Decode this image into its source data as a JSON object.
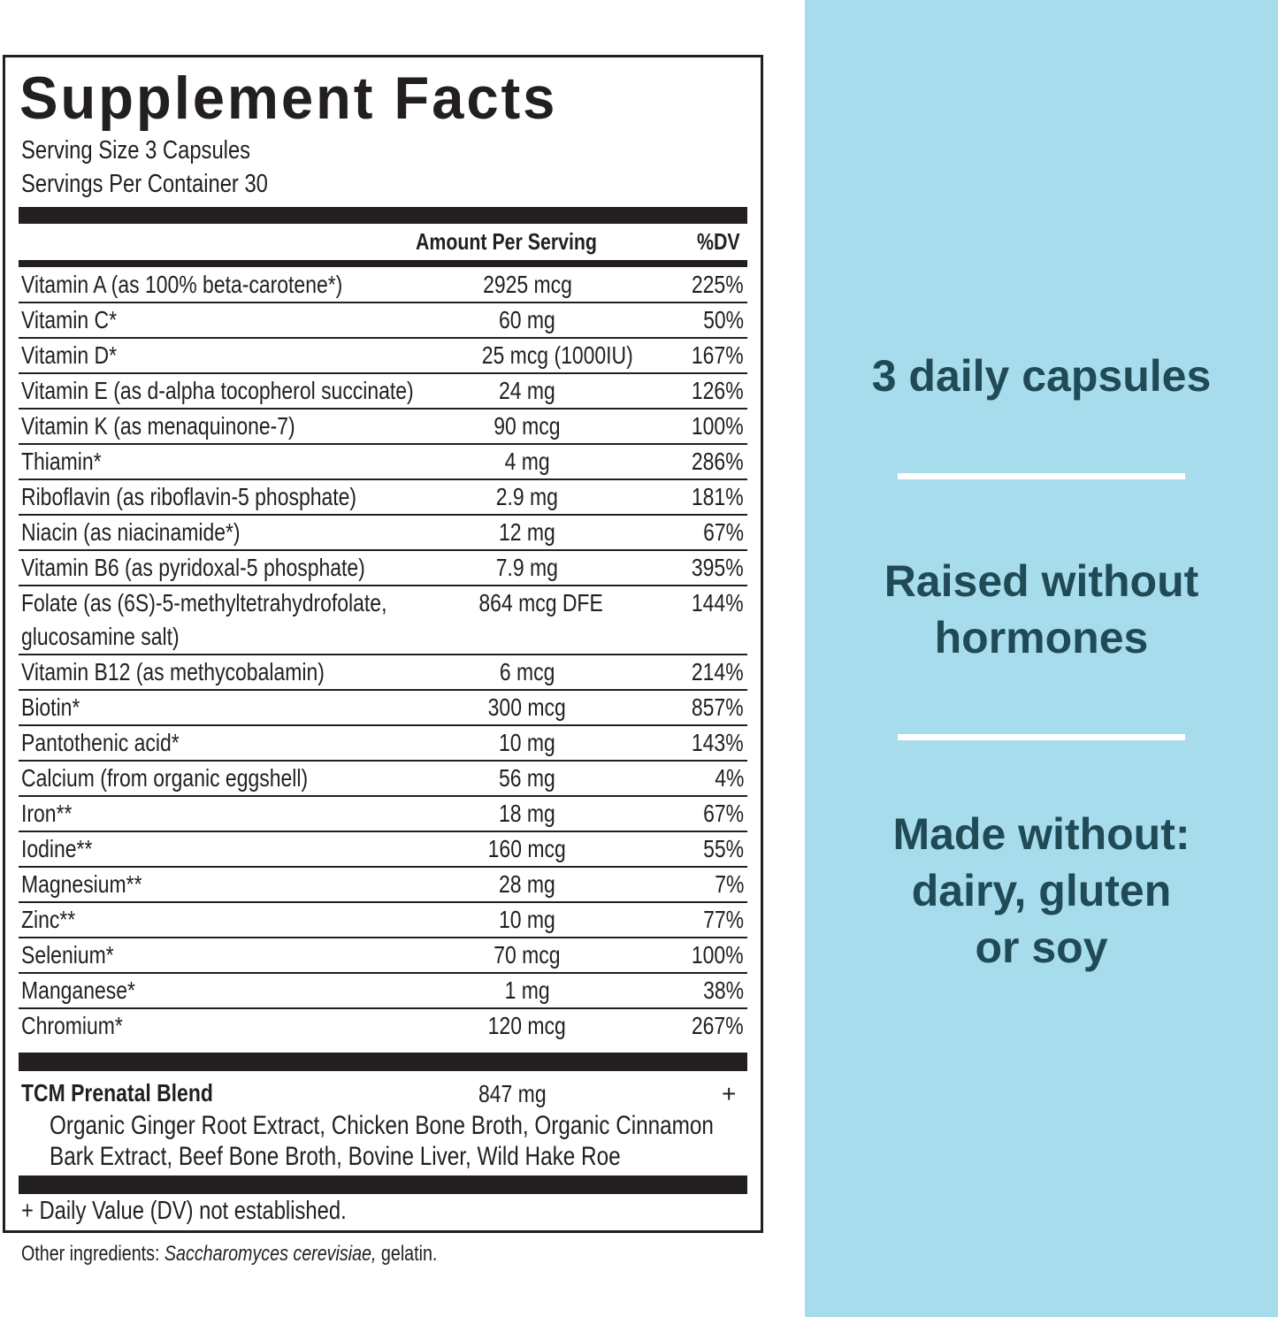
{
  "header": {
    "title": "Supplement Facts",
    "serving_size": "Serving Size 3 Capsules",
    "servings_per_container": "Servings Per Container 30"
  },
  "table": {
    "columns": [
      "Amount Per Serving",
      "%DV"
    ],
    "rows": [
      [
        "Vitamin A (as 100% beta-carotene*)",
        "2925 mcg",
        "225%"
      ],
      [
        "Vitamin C*",
        "60 mg",
        "50%"
      ],
      [
        "Vitamin D*",
        "25 mcg (1000IU)",
        "167%"
      ],
      [
        "Vitamin E (as d-alpha tocopherol succinate)",
        "24 mg",
        "126%"
      ],
      [
        "Vitamin K (as menaquinone-7)",
        "90 mcg",
        "100%"
      ],
      [
        "Thiamin*",
        "4 mg",
        "286%"
      ],
      [
        "Riboflavin (as riboflavin-5 phosphate)",
        "2.9 mg",
        "181%"
      ],
      [
        "Niacin (as niacinamide*)",
        "12 mg",
        "67%"
      ],
      [
        "Vitamin B6 (as pyridoxal-5 phosphate)",
        "7.9 mg",
        "395%"
      ],
      [
        "Folate (as (6S)-5-methyltetrahydrofolate, glucosamine salt)",
        "864 mcg DFE",
        "144%"
      ],
      [
        "Vitamin B12 (as methycobalamin)",
        "6 mcg",
        "214%"
      ],
      [
        "Biotin*",
        "300 mcg",
        "857%"
      ],
      [
        "Pantothenic acid*",
        "10 mg",
        "143%"
      ],
      [
        "Calcium (from organic eggshell)",
        "56 mg",
        "4%"
      ],
      [
        "Iron**",
        "18 mg",
        "67%"
      ],
      [
        "Iodine**",
        "160 mcg",
        "55%"
      ],
      [
        "Magnesium**",
        "28 mg",
        "7%"
      ],
      [
        "Zinc**",
        "10 mg",
        "77%"
      ],
      [
        "Selenium*",
        "70 mcg",
        "100%"
      ],
      [
        "Manganese*",
        "1 mg",
        "38%"
      ],
      [
        "Chromium*",
        "120 mcg",
        "267%"
      ]
    ]
  },
  "blend": {
    "name": "TCM Prenatal Blend",
    "amount": "847 mg",
    "dv": "+",
    "ingredients": "Organic Ginger Root Extract, Chicken Bone Broth, Organic Cinnamon Bark Extract, Beef Bone Broth, Bovine Liver, Wild Hake Roe"
  },
  "footnote": "+ Daily Value (DV) not established.",
  "other_ingredients": {
    "label": "Other ingredients:",
    "italic": "Saccharomyces cerevisiae,",
    "rest": "gelatin."
  },
  "side_panel": {
    "claims": [
      "3 daily capsules",
      "Raised without hormones",
      "Made without: dairy, gluten or soy"
    ]
  }
}
